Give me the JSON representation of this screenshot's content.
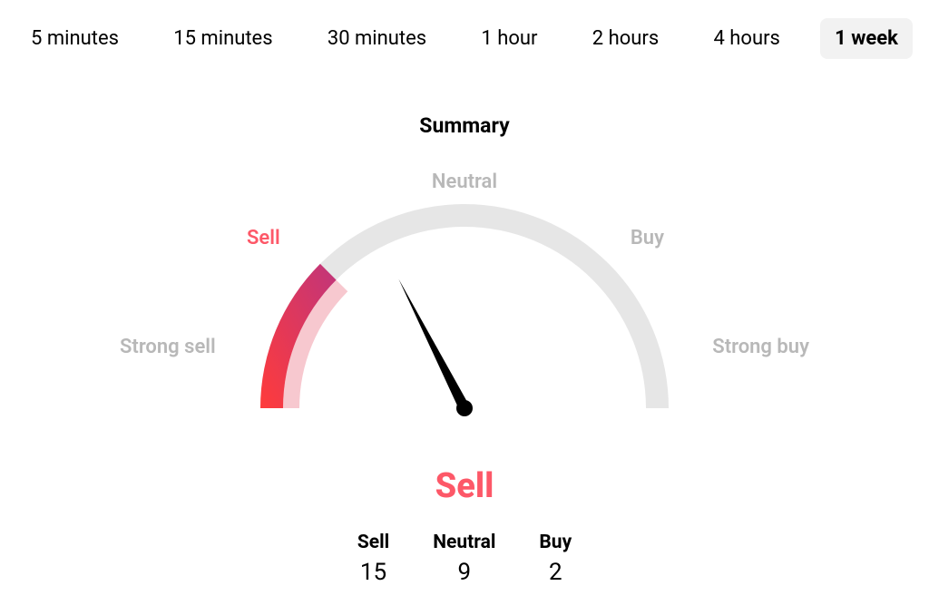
{
  "tabs": {
    "items": [
      {
        "label": "5 minutes",
        "active": false
      },
      {
        "label": "15 minutes",
        "active": false
      },
      {
        "label": "30 minutes",
        "active": false
      },
      {
        "label": "1 hour",
        "active": false
      },
      {
        "label": "2 hours",
        "active": false
      },
      {
        "label": "4 hours",
        "active": false
      },
      {
        "label": "1 week",
        "active": true
      }
    ]
  },
  "summary": {
    "title": "Summary",
    "verdict_label": "Sell",
    "verdict_color": "#fd5868",
    "gauge": {
      "type": "gauge",
      "radius_outer": 225,
      "radius_inner": 200,
      "track_color": "#e6e6e6",
      "fill_inner_color": "#f7c8cf",
      "gradient_start": "#ff3b3b",
      "gradient_end": "#c0357b",
      "needle_angle_deg": 117,
      "fill_end_angle_deg": 135,
      "needle_color": "#000000",
      "labels": {
        "strong_sell": "Strong sell",
        "sell": "Sell",
        "neutral": "Neutral",
        "buy": "Buy",
        "strong_buy": "Strong buy"
      },
      "active_label_key": "sell",
      "label_color_inactive": "#b8b8b8",
      "label_color_active": "#fd5868",
      "label_fontsize": 22,
      "label_fontweight": 600
    },
    "counts": {
      "sell": {
        "label": "Sell",
        "value": "15"
      },
      "neutral": {
        "label": "Neutral",
        "value": "9"
      },
      "buy": {
        "label": "Buy",
        "value": "2"
      }
    }
  },
  "colors": {
    "background": "#ffffff",
    "text": "#000000",
    "tab_active_bg": "#f2f2f2"
  }
}
